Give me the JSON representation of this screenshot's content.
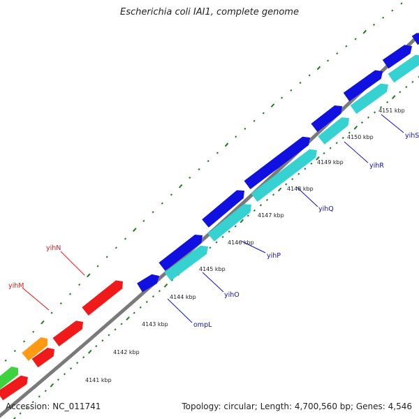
{
  "title": "Escherichia coli IAI1, complete genome",
  "footer": {
    "accession": "Accession: NC_011741",
    "summary": "Topology: circular; Length: 4,700,560 bp; Genes: 4,546"
  },
  "colors": {
    "backbone": "#7a7a7a",
    "forward_cds": "#1010e0",
    "forward_rna": "#36d1d1",
    "reverse_cds": "#f01a1a",
    "reverse_other": "#ff9a12",
    "reverse_green": "#3fd23f",
    "tick": "#1e7a1e",
    "forward_label": "#1010c8",
    "reverse_label": "#e01818"
  },
  "positions": [
    {
      "label": "4141 kbp"
    },
    {
      "label": "4142 kbp"
    },
    {
      "label": "4143 kbp"
    },
    {
      "label": "4144 kbp"
    },
    {
      "label": "4145 kbp"
    },
    {
      "label": "4146 kbp"
    },
    {
      "label": "4147 kbp"
    },
    {
      "label": "4148 kbp"
    },
    {
      "label": "4149 kbp"
    },
    {
      "label": "4150 kbp"
    },
    {
      "label": "4151 kbp"
    }
  ],
  "forward_genes": [
    {
      "name": "ompL"
    },
    {
      "name": "yihO"
    },
    {
      "name": "yihP"
    },
    {
      "name": "yihQ"
    },
    {
      "name": "yihR"
    },
    {
      "name": "yihS"
    }
  ],
  "reverse_genes": [
    {
      "name": "yihM"
    },
    {
      "name": "yihN"
    }
  ]
}
